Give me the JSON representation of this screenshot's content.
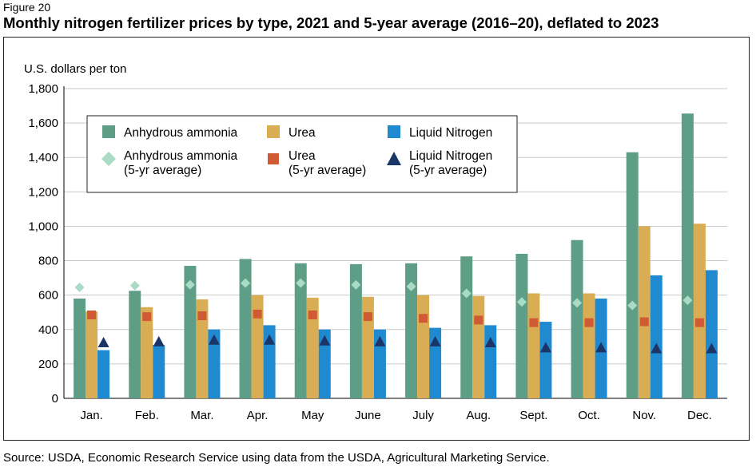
{
  "figure_label": "Figure 20",
  "title": "Monthly nitrogen fertilizer prices by type, 2021 and 5-year average (2016–20), deflated to 2023",
  "source": "Source: USDA, Economic Research Service using data from the USDA, Agricultural Marketing Service.",
  "colors": {
    "anhydrous": "#5f9e86",
    "urea": "#d9ad54",
    "liquid": "#1f8ad0",
    "anhydrous_avg": "#a9dbc6",
    "urea_avg": "#cf5a34",
    "liquid_avg": "#1c3569",
    "grid": "#c9c9c9"
  },
  "chart_data": {
    "type": "bar",
    "ylabel": "U.S. dollars per ton",
    "ylim": [
      0,
      1800
    ],
    "yticks": [
      0,
      200,
      400,
      600,
      800,
      1000,
      1200,
      1400,
      1600,
      1800
    ],
    "ytick_labels": [
      "0",
      "200",
      "400",
      "600",
      "800",
      "1,000",
      "1,200",
      "1,400",
      "1,600",
      "1,800"
    ],
    "grid": "horizontal",
    "categories": [
      "Jan.",
      "Feb.",
      "Mar.",
      "Apr.",
      "May",
      "June",
      "July",
      "Aug.",
      "Sept.",
      "Oct.",
      "Nov.",
      "Dec."
    ],
    "series": [
      {
        "name": "Anhydrous ammonia",
        "kind": "bar",
        "values": [
          580,
          625,
          770,
          810,
          785,
          780,
          785,
          825,
          840,
          920,
          1430,
          1655
        ]
      },
      {
        "name": "Urea",
        "kind": "bar",
        "values": [
          505,
          530,
          575,
          600,
          585,
          590,
          600,
          595,
          610,
          610,
          1000,
          1015
        ]
      },
      {
        "name": "Liquid Nitrogen",
        "kind": "bar",
        "values": [
          280,
          310,
          400,
          425,
          400,
          400,
          410,
          425,
          445,
          580,
          715,
          745
        ]
      },
      {
        "name": "Anhydrous ammonia (5-yr average)",
        "kind": "diamond",
        "values": [
          645,
          655,
          660,
          670,
          670,
          660,
          650,
          610,
          560,
          555,
          540,
          570
        ]
      },
      {
        "name": "Urea (5-yr average)",
        "kind": "square",
        "values": [
          485,
          475,
          480,
          490,
          485,
          475,
          465,
          455,
          440,
          440,
          445,
          440
        ]
      },
      {
        "name": "Liquid Nitrogen (5-yr average)",
        "kind": "triangle",
        "values": [
          325,
          330,
          340,
          340,
          335,
          330,
          330,
          325,
          295,
          295,
          290,
          290
        ]
      }
    ],
    "legend": [
      {
        "line1": "Anhydrous ammonia",
        "line2": ""
      },
      {
        "line1": "Urea",
        "line2": ""
      },
      {
        "line1": "Liquid Nitrogen",
        "line2": ""
      },
      {
        "line1": "Anhydrous ammonia",
        "line2": "(5-yr average)"
      },
      {
        "line1": "Urea",
        "line2": "(5-yr average)"
      },
      {
        "line1": "Liquid Nitrogen",
        "line2": "(5-yr average)"
      }
    ],
    "legend_position": "top-left"
  }
}
